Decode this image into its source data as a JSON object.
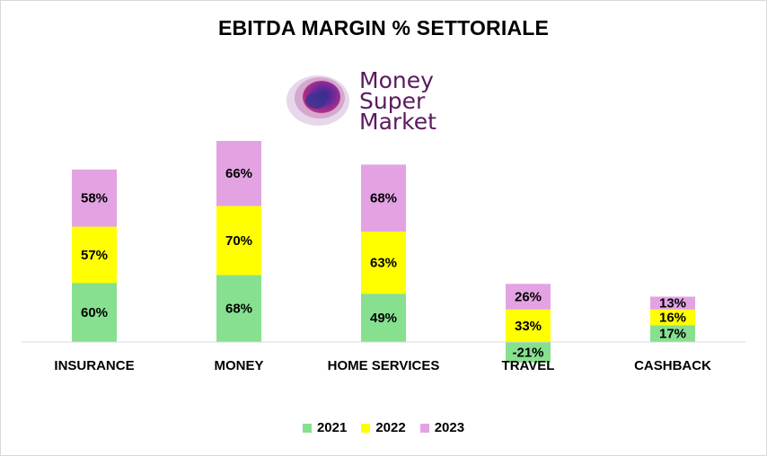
{
  "chart_data": {
    "type": "bar",
    "stacked": true,
    "title": "EBITDA MARGIN % SETTORIALE",
    "categories": [
      "INSURANCE",
      "MONEY",
      "HOME SERVICES",
      "TRAVEL",
      "CASHBACK"
    ],
    "series": [
      {
        "name": "2021",
        "color": "#87e08f",
        "values": [
          60,
          68,
          49,
          -21,
          17
        ],
        "labels": [
          "60%",
          "68%",
          "49%",
          "-21%",
          "17%"
        ]
      },
      {
        "name": "2022",
        "color": "#ffff00",
        "values": [
          57,
          70,
          63,
          33,
          16
        ],
        "labels": [
          "57%",
          "70%",
          "63%",
          "33%",
          "16%"
        ]
      },
      {
        "name": "2023",
        "color": "#e3a3e3",
        "values": [
          58,
          66,
          68,
          26,
          13
        ],
        "labels": [
          "58%",
          "66%",
          "68%",
          "26%",
          "13%"
        ]
      }
    ],
    "legend_position": "bottom",
    "grid": false,
    "ylim": [
      -25,
      220
    ]
  },
  "logo": {
    "lines": [
      "Money",
      "Super",
      "Market"
    ]
  }
}
